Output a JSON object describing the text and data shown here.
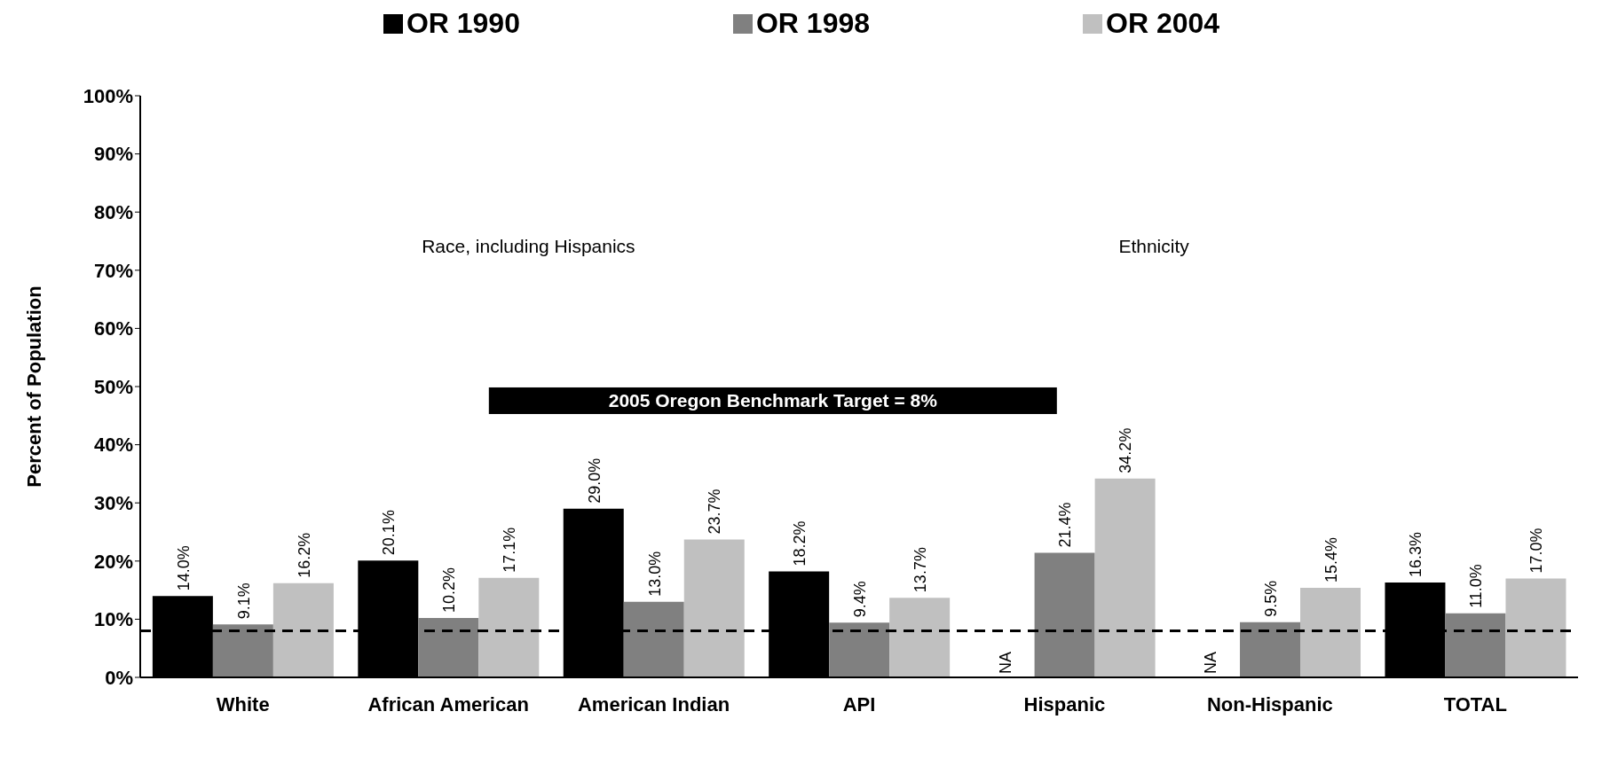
{
  "chart_data": {
    "type": "bar",
    "ylabel": "Percent of Population",
    "categories": [
      "White",
      "African American",
      "American Indian",
      "API",
      "Hispanic",
      "Non-Hispanic",
      "TOTAL"
    ],
    "series": [
      {
        "name": "OR 1990",
        "color": "#000000",
        "values": [
          14.0,
          20.1,
          29.0,
          18.2,
          null,
          null,
          16.3
        ],
        "value_labels": [
          "14.0%",
          "20.1%",
          "29.0%",
          "18.2%",
          "NA",
          "NA",
          "16.3%"
        ]
      },
      {
        "name": "OR 1998",
        "color": "#808080",
        "values": [
          9.1,
          10.2,
          13.0,
          9.4,
          21.4,
          9.5,
          11.0
        ],
        "value_labels": [
          "9.1%",
          "10.2%",
          "13.0%",
          "9.4%",
          "21.4%",
          "9.5%",
          "11.0%"
        ]
      },
      {
        "name": "OR 2004",
        "color": "#c0c0c0",
        "values": [
          16.2,
          17.1,
          23.7,
          13.7,
          34.2,
          15.4,
          17.0
        ],
        "value_labels": [
          "16.2%",
          "17.1%",
          "23.7%",
          "13.7%",
          "34.2%",
          "15.4%",
          "17.0%"
        ]
      }
    ],
    "ylim": [
      0,
      100
    ],
    "yticks": [
      {
        "value": 0,
        "label": "0%"
      },
      {
        "value": 10,
        "label": "10%"
      },
      {
        "value": 20,
        "label": "20%"
      },
      {
        "value": 30,
        "label": "30%"
      },
      {
        "value": 40,
        "label": "40%"
      },
      {
        "value": 50,
        "label": "50%"
      },
      {
        "value": 60,
        "label": "60%"
      },
      {
        "value": 70,
        "label": "70%"
      },
      {
        "value": 80,
        "label": "80%"
      },
      {
        "value": 90,
        "label": "90%"
      },
      {
        "value": 100,
        "label": "100%"
      }
    ],
    "ref_lines": [
      {
        "axis": "y",
        "value": 8,
        "color": "#000000",
        "line_style": "dashed"
      }
    ],
    "annotations": [
      "Race, including Hispanics",
      "Ethnicity",
      "2005 Oregon Benchmark Target = 8%"
    ],
    "legend": "top"
  }
}
